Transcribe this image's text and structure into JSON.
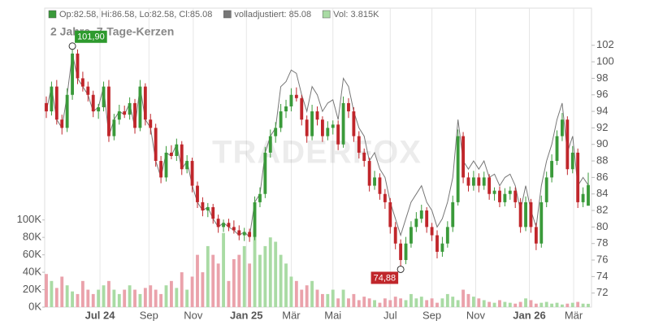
{
  "chart_data": {
    "type": "candlestick",
    "subtitle": "2 Jahre, 7-Tage-Kerzen",
    "watermark": "TRADERFOX",
    "legend": [
      {
        "label": "Op:82.58, Hi:86.58, Lo:82.58, Cl:85.08",
        "color": "#3a9a3a"
      },
      {
        "label": "volladjustiert: 85.08",
        "color": "#777777"
      },
      {
        "label": "Vol: 3.815K",
        "color": "#a9dba4"
      }
    ],
    "colors": {
      "up": "#3a9a3a",
      "down": "#c0262b",
      "volume_up": "#a9dba4",
      "volume_down": "#eaa2ab",
      "line": "#777777"
    },
    "xlim": [
      0,
      104
    ],
    "xticks": [
      {
        "value": 10.3,
        "label": "Jul 24",
        "bold": true
      },
      {
        "value": 19.7,
        "label": "Sep"
      },
      {
        "value": 28.2,
        "label": "Nov"
      },
      {
        "value": 38.4,
        "label": "Jan 25",
        "bold": true
      },
      {
        "value": 47,
        "label": "Mär"
      },
      {
        "value": 55,
        "label": "Mai"
      },
      {
        "value": 66,
        "label": "Jul"
      },
      {
        "value": 74,
        "label": "Sep"
      },
      {
        "value": 82.4,
        "label": "Nov"
      },
      {
        "value": 92.7,
        "label": "Jan 26",
        "bold": true
      },
      {
        "value": 101.2,
        "label": "Mär"
      }
    ],
    "ylim": [
      70.3,
      106.5
    ],
    "yticks": [
      72,
      74,
      76,
      78,
      80,
      82,
      84,
      86,
      88,
      90,
      92,
      94,
      96,
      98,
      100,
      102
    ],
    "y2lim": [
      0,
      343000
    ],
    "y2ticks": [
      {
        "value": 0,
        "label": "0K"
      },
      {
        "value": 20000,
        "label": "20K"
      },
      {
        "value": 40000,
        "label": "40K"
      },
      {
        "value": 60000,
        "label": "60K"
      },
      {
        "value": 80000,
        "label": "80K"
      },
      {
        "value": 100000,
        "label": "100K"
      }
    ],
    "grid": true,
    "annotations": [
      {
        "label": "101,90",
        "value": 101.9,
        "color": "#2e9a2e"
      },
      {
        "label": "74,88",
        "value": 74.88,
        "color": "#c0262b"
      }
    ],
    "ohlc": [
      [
        95,
        95.8,
        93.2,
        94
      ],
      [
        94,
        97.6,
        93.5,
        97
      ],
      [
        97,
        97.8,
        92.4,
        93
      ],
      [
        93,
        93.6,
        91.2,
        92
      ],
      [
        92,
        96.8,
        91.5,
        96
      ],
      [
        96,
        101.9,
        95.4,
        101
      ],
      [
        101,
        101.5,
        97.3,
        98
      ],
      [
        98,
        98.8,
        96.4,
        97
      ],
      [
        97,
        97.6,
        95.2,
        96
      ],
      [
        96,
        96.5,
        93.3,
        94
      ],
      [
        94,
        94.9,
        93.1,
        94.5
      ],
      [
        94.5,
        97.6,
        94,
        97
      ],
      [
        97,
        97.8,
        90.3,
        91
      ],
      [
        91,
        93.7,
        90.5,
        93
      ],
      [
        93,
        94.8,
        92.4,
        94
      ],
      [
        94,
        94.7,
        93.2,
        93.6
      ],
      [
        93.6,
        95.7,
        93,
        95
      ],
      [
        95,
        95.5,
        91.3,
        92
      ],
      [
        92,
        97.8,
        91.6,
        97
      ],
      [
        97,
        97.4,
        92.3,
        93
      ],
      [
        93,
        93.7,
        91.2,
        92
      ],
      [
        92,
        92.5,
        87.3,
        88
      ],
      [
        88,
        88.6,
        85.3,
        86
      ],
      [
        86,
        89.8,
        85.5,
        89
      ],
      [
        89,
        89.9,
        88.2,
        88.6
      ],
      [
        88.6,
        90.7,
        88,
        90
      ],
      [
        90,
        90.4,
        86.3,
        87
      ],
      [
        87,
        88.7,
        86.5,
        88
      ],
      [
        88,
        88.4,
        84.2,
        85
      ],
      [
        85,
        85.5,
        82.3,
        83
      ],
      [
        83,
        83.6,
        81.3,
        82
      ],
      [
        82,
        82.9,
        81.2,
        82.4
      ],
      [
        82.4,
        82.8,
        80.4,
        81
      ],
      [
        81,
        81.5,
        79.3,
        80
      ],
      [
        80,
        80.9,
        79.4,
        80.5
      ],
      [
        80.5,
        81,
        79.5,
        80
      ],
      [
        80,
        80.8,
        79.2,
        79.6
      ],
      [
        79.6,
        80.2,
        78.4,
        79
      ],
      [
        79,
        79.9,
        78.3,
        79.4
      ],
      [
        79.4,
        79.8,
        78.2,
        78.8
      ],
      [
        78.8,
        83.7,
        78.4,
        83
      ],
      [
        83,
        84.8,
        82.4,
        84
      ],
      [
        84,
        89.7,
        83.5,
        89
      ],
      [
        89,
        91.8,
        88.4,
        91
      ],
      [
        91,
        92.7,
        90.2,
        92
      ],
      [
        92,
        94.9,
        91.5,
        94
      ],
      [
        94,
        95.4,
        93.2,
        94.6
      ],
      [
        94.6,
        96.8,
        94,
        96
      ],
      [
        96,
        96.9,
        95.2,
        95.6
      ],
      [
        95.6,
        96,
        92.3,
        93
      ],
      [
        93,
        93.5,
        90.2,
        91
      ],
      [
        91,
        94.8,
        90.5,
        94
      ],
      [
        94,
        94.6,
        92.3,
        93
      ],
      [
        93,
        93.4,
        90.3,
        91
      ],
      [
        91,
        92.8,
        90.5,
        92
      ],
      [
        92,
        92.9,
        91.2,
        92.4
      ],
      [
        92.4,
        92.9,
        89.3,
        90
      ],
      [
        90,
        95.8,
        89.6,
        95
      ],
      [
        95,
        95.6,
        93.2,
        94
      ],
      [
        94,
        94.5,
        90.3,
        91
      ],
      [
        91,
        91.6,
        88.3,
        89
      ],
      [
        89,
        89.5,
        87.3,
        88
      ],
      [
        88,
        88.4,
        84.3,
        85
      ],
      [
        85,
        86.8,
        84.5,
        86
      ],
      [
        86,
        86.5,
        83.3,
        84
      ],
      [
        84,
        84.6,
        82.2,
        83
      ],
      [
        83,
        83.5,
        79.2,
        80
      ],
      [
        80,
        80.6,
        77.3,
        78
      ],
      [
        78,
        78.5,
        74.88,
        76
      ],
      [
        76,
        78.8,
        75.5,
        78
      ],
      [
        78,
        80.7,
        77.5,
        80
      ],
      [
        80,
        81.8,
        79.4,
        81
      ],
      [
        81,
        82.7,
        80.5,
        82
      ],
      [
        82,
        82.4,
        79.3,
        80
      ],
      [
        80,
        80.5,
        78.3,
        79
      ],
      [
        79,
        79.6,
        76.2,
        77
      ],
      [
        77,
        78.8,
        76.4,
        78
      ],
      [
        78,
        80.7,
        77.5,
        80
      ],
      [
        80,
        83.8,
        79.4,
        83
      ],
      [
        83,
        91.8,
        82.6,
        91
      ],
      [
        91,
        91.5,
        85.3,
        86
      ],
      [
        86,
        86.6,
        84.3,
        85
      ],
      [
        85,
        86.8,
        84.4,
        86
      ],
      [
        86,
        86.5,
        84.2,
        85
      ],
      [
        85,
        86.7,
        84.5,
        86
      ],
      [
        86,
        86.4,
        83.3,
        84
      ],
      [
        84,
        84.8,
        83.2,
        84.4
      ],
      [
        84.4,
        84.9,
        82.4,
        83
      ],
      [
        83,
        84.7,
        82.5,
        84
      ],
      [
        84,
        84.9,
        83.3,
        84.4
      ],
      [
        84.4,
        84.8,
        82.3,
        83
      ],
      [
        83,
        83.5,
        79.3,
        80
      ],
      [
        80,
        83.7,
        79.5,
        83
      ],
      [
        83,
        83.4,
        79.3,
        80
      ],
      [
        80,
        80.5,
        77.2,
        78
      ],
      [
        78,
        83.8,
        77.5,
        83
      ],
      [
        83,
        86.7,
        82.4,
        86
      ],
      [
        86,
        88.8,
        85.4,
        88
      ],
      [
        88,
        91.7,
        87.5,
        91
      ],
      [
        91,
        93.8,
        90.4,
        93
      ],
      [
        93,
        93.4,
        86.3,
        87
      ],
      [
        87,
        89.8,
        86.5,
        89
      ],
      [
        89,
        89.5,
        82.3,
        83
      ],
      [
        83,
        84.8,
        82.4,
        84
      ],
      [
        82.58,
        86.58,
        82.58,
        85.08
      ]
    ],
    "adjusted": [
      94,
      97,
      93,
      92,
      96,
      101,
      98,
      97,
      96,
      94,
      94.5,
      97,
      91,
      93,
      94,
      93.6,
      95,
      92,
      97,
      93,
      92,
      88,
      86,
      89,
      88.6,
      90,
      87,
      88,
      85,
      83,
      82,
      82.4,
      81,
      80,
      80.5,
      80,
      79.6,
      79,
      79.4,
      78.8,
      83,
      84,
      89,
      91,
      92,
      97,
      97.6,
      99,
      98.6,
      96,
      94,
      97,
      96,
      94,
      95,
      95.4,
      93,
      98,
      97,
      94,
      92,
      91,
      88,
      89,
      87,
      86,
      83,
      81,
      79,
      81,
      83,
      84,
      85,
      83,
      82,
      80,
      81,
      83,
      86,
      93,
      88,
      87,
      88,
      87,
      88,
      86,
      86.4,
      85,
      86,
      86.4,
      85,
      82,
      85,
      82,
      80,
      85,
      88,
      90,
      93,
      95,
      89,
      91,
      85,
      86,
      85.08
    ],
    "volumes": [
      38000,
      30000,
      22000,
      35000,
      25000,
      18000,
      15000,
      30000,
      20000,
      15000,
      20000,
      25000,
      30000,
      20000,
      15000,
      20000,
      25000,
      20000,
      15000,
      22000,
      25000,
      20000,
      15000,
      25000,
      30000,
      22000,
      40000,
      20000,
      35000,
      60000,
      40000,
      70000,
      60000,
      50000,
      85000,
      30000,
      55000,
      60000,
      70000,
      50000,
      90000,
      60000,
      70000,
      80000,
      75000,
      60000,
      50000,
      35000,
      30000,
      20000,
      25000,
      30000,
      20000,
      15000,
      15000,
      20000,
      10000,
      20000,
      10000,
      15000,
      8000,
      12000,
      10000,
      8000,
      5000,
      10000,
      8000,
      12000,
      10000,
      8000,
      15000,
      10000,
      12000,
      8000,
      10000,
      5000,
      10000,
      15000,
      12000,
      8000,
      20000,
      15000,
      12000,
      10000,
      8000,
      6000,
      5000,
      8000,
      6000,
      5000,
      4000,
      6000,
      10000,
      8000,
      4000,
      5000,
      6000,
      4000,
      5000,
      3000,
      4000,
      5000,
      6000,
      4000,
      3815
    ]
  }
}
